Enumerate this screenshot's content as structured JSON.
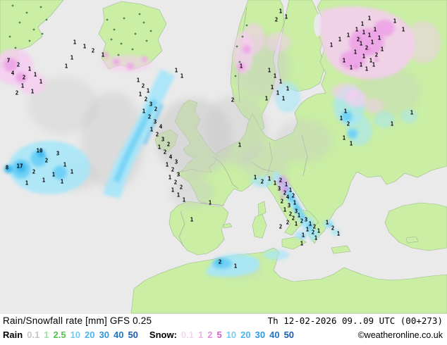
{
  "footer": {
    "title": "Rain/Snowfall rate [mm] GFS 0.25",
    "valid": "Th 12-02-2026 09..09 UTC (00+273)",
    "copyright": "©weatheronline.co.uk",
    "rain": {
      "label": "Rain",
      "steps": [
        {
          "v": "0.1",
          "c": "#c6c6c6"
        },
        {
          "v": "1",
          "c": "#a0e0a0"
        },
        {
          "v": "2.5",
          "c": "#50c050"
        },
        {
          "v": "10",
          "c": "#74ccf4"
        },
        {
          "v": "20",
          "c": "#4cb4ec"
        },
        {
          "v": "30",
          "c": "#2c96e0"
        },
        {
          "v": "40",
          "c": "#2078c8"
        },
        {
          "v": "50",
          "c": "#1a5cb0"
        }
      ]
    },
    "snow": {
      "label": "Snow:",
      "steps": [
        {
          "v": "0.1",
          "c": "#f0d8f0"
        },
        {
          "v": "1",
          "c": "#f0b4ec"
        },
        {
          "v": "2",
          "c": "#e88ce0"
        },
        {
          "v": "5",
          "c": "#d85cd0"
        },
        {
          "v": "10",
          "c": "#74ccf4"
        },
        {
          "v": "20",
          "c": "#4cb4ec"
        },
        {
          "v": "30",
          "c": "#2c96e0"
        },
        {
          "v": "40",
          "c": "#2078c8"
        },
        {
          "v": "50",
          "c": "#1a5cb0"
        }
      ]
    }
  },
  "map": {
    "model": "GFS 0.25",
    "units": "mm",
    "colors": {
      "sea": "#eaeaea",
      "land": "#c9eea4",
      "landline": "#9db98e",
      "border": "#a8a8a8",
      "grayp": "#c9c9c9",
      "rainLight": "#a5e6f9",
      "rainMid": "#6ed1f5",
      "rainDeep": "#3db8ee",
      "snowLight": "#f6cdf1",
      "snowMid": "#eda7e6",
      "snowDeep": "#e273d8",
      "darkgreen": "#4f8c4a"
    },
    "values": [
      [
        12,
        86,
        "7"
      ],
      [
        26,
        92,
        "2"
      ],
      [
        42,
        98,
        "1"
      ],
      [
        18,
        104,
        "4"
      ],
      [
        34,
        110,
        "2"
      ],
      [
        50,
        106,
        "1"
      ],
      [
        58,
        116,
        "1"
      ],
      [
        32,
        122,
        "1"
      ],
      [
        46,
        130,
        "1"
      ],
      [
        24,
        132,
        "2"
      ],
      [
        106,
        60,
        "1"
      ],
      [
        120,
        66,
        "1"
      ],
      [
        132,
        72,
        "2"
      ],
      [
        146,
        78,
        "1"
      ],
      [
        102,
        82,
        "1"
      ],
      [
        94,
        94,
        "1"
      ],
      [
        250,
        100,
        "1"
      ],
      [
        258,
        108,
        "1"
      ],
      [
        196,
        114,
        "1"
      ],
      [
        203,
        122,
        "2"
      ],
      [
        210,
        129,
        "1"
      ],
      [
        199,
        134,
        "1"
      ],
      [
        207,
        141,
        "2"
      ],
      [
        214,
        148,
        "3"
      ],
      [
        221,
        155,
        "2"
      ],
      [
        204,
        158,
        "1"
      ],
      [
        212,
        166,
        "2"
      ],
      [
        220,
        173,
        "3"
      ],
      [
        228,
        180,
        "4"
      ],
      [
        215,
        184,
        "1"
      ],
      [
        223,
        191,
        "2"
      ],
      [
        231,
        198,
        "3"
      ],
      [
        239,
        205,
        "2"
      ],
      [
        226,
        209,
        "1"
      ],
      [
        234,
        216,
        "2"
      ],
      [
        242,
        223,
        "4"
      ],
      [
        250,
        230,
        "3"
      ],
      [
        237,
        234,
        "1"
      ],
      [
        245,
        241,
        "2"
      ],
      [
        253,
        248,
        "3"
      ],
      [
        241,
        252,
        "1"
      ],
      [
        249,
        259,
        "2"
      ],
      [
        257,
        266,
        "2"
      ],
      [
        245,
        270,
        "1"
      ],
      [
        253,
        277,
        "1"
      ],
      [
        261,
        284,
        "1"
      ],
      [
        56,
        214,
        "10"
      ],
      [
        82,
        218,
        "3"
      ],
      [
        66,
        228,
        "2"
      ],
      [
        92,
        234,
        "1"
      ],
      [
        28,
        236,
        "17"
      ],
      [
        10,
        238,
        "8"
      ],
      [
        48,
        244,
        "2"
      ],
      [
        76,
        248,
        "1"
      ],
      [
        102,
        244,
        "1"
      ],
      [
        62,
        256,
        "1"
      ],
      [
        88,
        258,
        "1"
      ],
      [
        38,
        260,
        "1"
      ],
      [
        330,
        142,
        "2"
      ],
      [
        342,
        94,
        "1"
      ],
      [
        398,
        16,
        "1"
      ],
      [
        406,
        24,
        "1"
      ],
      [
        392,
        28,
        "2"
      ],
      [
        382,
        100,
        "1"
      ],
      [
        390,
        108,
        "1"
      ],
      [
        398,
        116,
        "1"
      ],
      [
        386,
        124,
        "1"
      ],
      [
        394,
        132,
        "1"
      ],
      [
        402,
        140,
        "1"
      ],
      [
        408,
        126,
        "1"
      ],
      [
        378,
        140,
        "1"
      ],
      [
        340,
        206,
        "1"
      ],
      [
        298,
        288,
        "1"
      ],
      [
        362,
        252,
        "1"
      ],
      [
        372,
        258,
        "2"
      ],
      [
        382,
        254,
        "1"
      ],
      [
        390,
        260,
        "1"
      ],
      [
        398,
        256,
        "2"
      ],
      [
        406,
        262,
        "1"
      ],
      [
        396,
        268,
        "3"
      ],
      [
        404,
        274,
        "2"
      ],
      [
        412,
        270,
        "1"
      ],
      [
        408,
        280,
        "4"
      ],
      [
        416,
        278,
        "2"
      ],
      [
        400,
        286,
        "2"
      ],
      [
        410,
        292,
        "3"
      ],
      [
        418,
        288,
        "1"
      ],
      [
        404,
        298,
        "1"
      ],
      [
        412,
        304,
        "2"
      ],
      [
        420,
        300,
        "3"
      ],
      [
        416,
        310,
        "2"
      ],
      [
        424,
        306,
        "1"
      ],
      [
        408,
        316,
        "2"
      ],
      [
        420,
        318,
        "1"
      ],
      [
        428,
        314,
        "2"
      ],
      [
        434,
        312,
        "3"
      ],
      [
        440,
        318,
        "1"
      ],
      [
        446,
        322,
        "2"
      ],
      [
        436,
        326,
        "1"
      ],
      [
        444,
        330,
        "2"
      ],
      [
        452,
        328,
        "1"
      ],
      [
        430,
        334,
        "1"
      ],
      [
        448,
        338,
        "1"
      ],
      [
        428,
        346,
        "1"
      ],
      [
        398,
        322,
        "2"
      ],
      [
        464,
        316,
        "1"
      ],
      [
        472,
        324,
        "2"
      ],
      [
        480,
        332,
        "1"
      ],
      [
        312,
        372,
        "2"
      ],
      [
        334,
        378,
        "1"
      ],
      [
        272,
        312,
        "1"
      ],
      [
        470,
        64,
        "1"
      ],
      [
        482,
        56,
        "1"
      ],
      [
        494,
        50,
        "1"
      ],
      [
        506,
        42,
        "1"
      ],
      [
        514,
        34,
        "1"
      ],
      [
        524,
        26,
        "1"
      ],
      [
        516,
        46,
        "1"
      ],
      [
        508,
        56,
        "2"
      ],
      [
        524,
        50,
        "1"
      ],
      [
        532,
        42,
        "1"
      ],
      [
        512,
        62,
        "1"
      ],
      [
        520,
        68,
        "2"
      ],
      [
        528,
        60,
        "1"
      ],
      [
        538,
        54,
        "1"
      ],
      [
        504,
        74,
        "1"
      ],
      [
        516,
        80,
        "1"
      ],
      [
        526,
        86,
        "1"
      ],
      [
        534,
        78,
        "2"
      ],
      [
        542,
        70,
        "1"
      ],
      [
        512,
        92,
        "1"
      ],
      [
        520,
        98,
        "1"
      ],
      [
        530,
        92,
        "1"
      ],
      [
        498,
        96,
        "1"
      ],
      [
        488,
        86,
        "1"
      ],
      [
        560,
        30,
        "1"
      ],
      [
        572,
        42,
        "1"
      ],
      [
        490,
        158,
        "1"
      ],
      [
        484,
        168,
        "1"
      ],
      [
        494,
        176,
        "2"
      ],
      [
        488,
        196,
        "1"
      ],
      [
        498,
        204,
        "1"
      ],
      [
        556,
        176,
        "1"
      ],
      [
        584,
        160,
        "1"
      ]
    ]
  }
}
